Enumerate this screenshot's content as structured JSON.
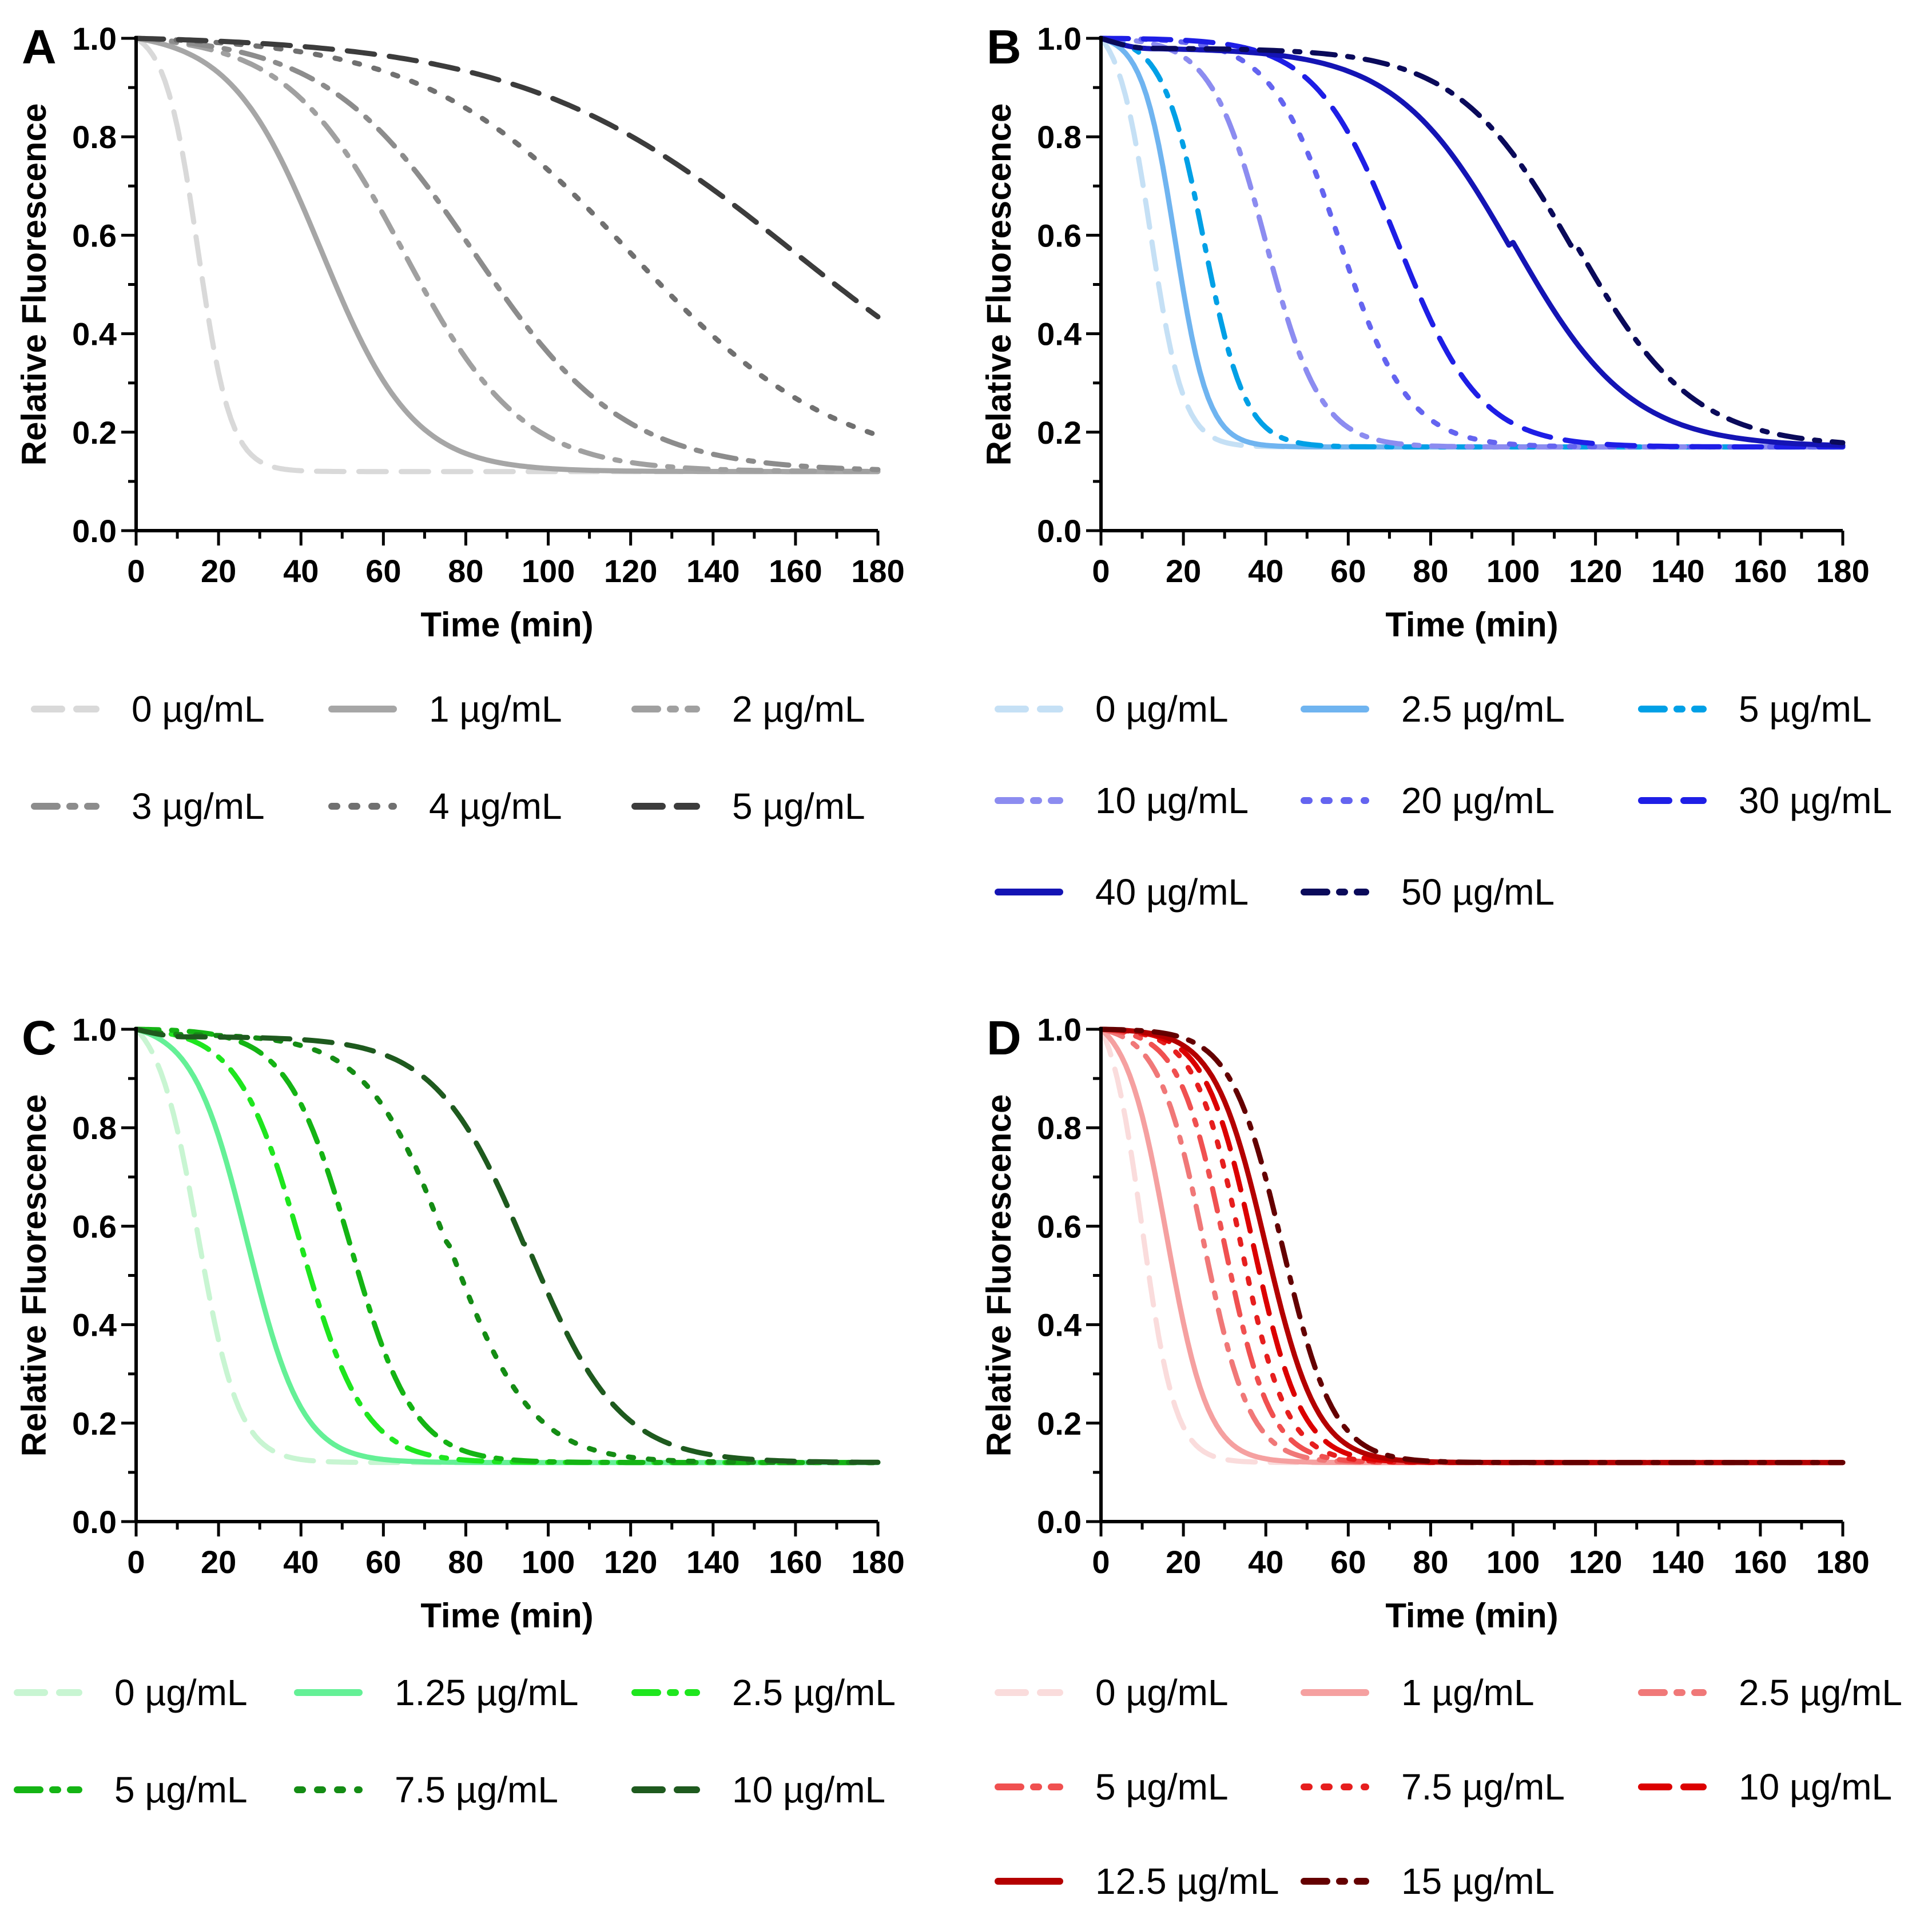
{
  "chart_data": [
    {
      "type": "line",
      "panel": "A",
      "ylabel": "Relative Fluorescence",
      "xlabel": "Time (min)",
      "xlim": [
        0,
        180
      ],
      "ylim": [
        0,
        1
      ],
      "xticks": [
        "0",
        "20",
        "40",
        "60",
        "80",
        "100",
        "120",
        "140",
        "160",
        "180"
      ],
      "yticks": [
        "0.0",
        "0.2",
        "0.4",
        "0.6",
        "0.8",
        "1.0"
      ],
      "legend_columns": 3,
      "series": [
        {
          "name": "0 µg/mL",
          "color": "#d9d9d9",
          "style": "dash",
          "t50": 15,
          "k": 0.25,
          "plateau": 0.12,
          "lag": 0
        },
        {
          "name": "1 µg/mL",
          "color": "#a6a6a6",
          "style": "solid",
          "t50": 45,
          "k": 0.09,
          "plateau": 0.12,
          "lag": 0
        },
        {
          "name": "2 µg/mL",
          "color": "#a0a0a0",
          "style": "dashdot",
          "t50": 65,
          "k": 0.07,
          "plateau": 0.12,
          "lag": 0
        },
        {
          "name": "3 µg/mL",
          "color": "#8c8c8c",
          "style": "dashdot",
          "t50": 82,
          "k": 0.055,
          "plateau": 0.12,
          "lag": 0
        },
        {
          "name": "4 µg/mL",
          "color": "#707070",
          "style": "dot",
          "t50": 120,
          "k": 0.04,
          "plateau": 0.12,
          "lag": 0
        },
        {
          "name": "5 µg/mL",
          "color": "#3c3c3c",
          "style": "dash",
          "t50": 160,
          "k": 0.03,
          "plateau": 0.12,
          "lag": 0
        }
      ]
    },
    {
      "type": "line",
      "panel": "B",
      "ylabel": "Relative Fluorescence",
      "xlabel": "Time (min)",
      "xlim": [
        0,
        180
      ],
      "ylim": [
        0,
        1
      ],
      "xticks": [
        "0",
        "20",
        "40",
        "60",
        "80",
        "100",
        "120",
        "140",
        "160",
        "180"
      ],
      "yticks": [
        "0.0",
        "0.2",
        "0.4",
        "0.6",
        "0.8",
        "1.0"
      ],
      "legend_columns": 3,
      "series": [
        {
          "name": "0 µg/mL",
          "color": "#c5e0f5",
          "style": "dash",
          "t50": 12,
          "k": 0.25,
          "plateau": 0.17,
          "lag": 0
        },
        {
          "name": "2.5 µg/mL",
          "color": "#6fb4f0",
          "style": "solid",
          "t50": 18,
          "k": 0.25,
          "plateau": 0.17,
          "lag": 0
        },
        {
          "name": "5 µg/mL",
          "color": "#00a0e6",
          "style": "dashdot",
          "t50": 25,
          "k": 0.2,
          "plateau": 0.17,
          "lag": 0
        },
        {
          "name": "10 µg/mL",
          "color": "#8c8cf0",
          "style": "dashdot",
          "t50": 40,
          "k": 0.15,
          "plateau": 0.17,
          "lag": 0
        },
        {
          "name": "20 µg/mL",
          "color": "#6464f0",
          "style": "dot",
          "t50": 58,
          "k": 0.12,
          "plateau": 0.17,
          "lag": 0
        },
        {
          "name": "30 µg/mL",
          "color": "#1e1ee6",
          "style": "dash",
          "t50": 72,
          "k": 0.1,
          "plateau": 0.17,
          "lag": 0
        },
        {
          "name": "40 µg/mL",
          "color": "#1414b4",
          "style": "solid",
          "t50": 100,
          "k": 0.07,
          "plateau": 0.17,
          "lag": 0.02
        },
        {
          "name": "50 µg/mL",
          "color": "#0a0a5a",
          "style": "dashdot",
          "t50": 115,
          "k": 0.07,
          "plateau": 0.17,
          "lag": 0.02
        }
      ]
    },
    {
      "type": "line",
      "panel": "C",
      "ylabel": "Relative Fluorescence",
      "xlabel": "Time (min)",
      "xlim": [
        0,
        180
      ],
      "ylim": [
        0,
        1
      ],
      "xticks": [
        "0",
        "20",
        "40",
        "60",
        "80",
        "100",
        "120",
        "140",
        "160",
        "180"
      ],
      "yticks": [
        "0.0",
        "0.2",
        "0.4",
        "0.6",
        "0.8",
        "1.0"
      ],
      "legend_columns": 3,
      "series": [
        {
          "name": "0 µg/mL",
          "color": "#c8f5d2",
          "style": "dash",
          "t50": 15,
          "k": 0.2,
          "plateau": 0.12,
          "lag": 0
        },
        {
          "name": "1.25 µg/mL",
          "color": "#64f096",
          "style": "solid",
          "t50": 27,
          "k": 0.15,
          "plateau": 0.12,
          "lag": 0
        },
        {
          "name": "2.5 µg/mL",
          "color": "#1ee61e",
          "style": "dashdot",
          "t50": 40,
          "k": 0.13,
          "plateau": 0.12,
          "lag": 0
        },
        {
          "name": "5 µg/mL",
          "color": "#14b414",
          "style": "dashdot",
          "t50": 52,
          "k": 0.13,
          "plateau": 0.12,
          "lag": 0
        },
        {
          "name": "7.5 µg/mL",
          "color": "#148c14",
          "style": "dot",
          "t50": 76,
          "k": 0.1,
          "plateau": 0.12,
          "lag": 0.01
        },
        {
          "name": "10 µg/mL",
          "color": "#1e5a1e",
          "style": "dash",
          "t50": 95,
          "k": 0.09,
          "plateau": 0.12,
          "lag": 0.015
        }
      ]
    },
    {
      "type": "line",
      "panel": "D",
      "ylabel": "Relative Fluorescence",
      "xlabel": "Time (min)",
      "xlim": [
        0,
        180
      ],
      "ylim": [
        0,
        1
      ],
      "xticks": [
        "0",
        "20",
        "40",
        "60",
        "80",
        "100",
        "120",
        "140",
        "160",
        "180"
      ],
      "yticks": [
        "0.0",
        "0.2",
        "0.4",
        "0.6",
        "0.8",
        "1.0"
      ],
      "legend_columns": 3,
      "series": [
        {
          "name": "0 µg/mL",
          "color": "#fadcdc",
          "style": "dash",
          "t50": 10,
          "k": 0.25,
          "plateau": 0.12,
          "lag": 0
        },
        {
          "name": "1 µg/mL",
          "color": "#f5a0a0",
          "style": "solid",
          "t50": 16,
          "k": 0.2,
          "plateau": 0.12,
          "lag": 0
        },
        {
          "name": "2.5 µg/mL",
          "color": "#f07878",
          "style": "dashdot",
          "t50": 25,
          "k": 0.18,
          "plateau": 0.12,
          "lag": 0
        },
        {
          "name": "5 µg/mL",
          "color": "#f05050",
          "style": "dashdot",
          "t50": 30,
          "k": 0.18,
          "plateau": 0.12,
          "lag": 0
        },
        {
          "name": "7.5 µg/mL",
          "color": "#e61e1e",
          "style": "dot",
          "t50": 34,
          "k": 0.18,
          "plateau": 0.12,
          "lag": 0
        },
        {
          "name": "10 µg/mL",
          "color": "#dc0000",
          "style": "dash",
          "t50": 37,
          "k": 0.17,
          "plateau": 0.12,
          "lag": 0
        },
        {
          "name": "12.5 µg/mL",
          "color": "#b40000",
          "style": "solid",
          "t50": 40,
          "k": 0.16,
          "plateau": 0.12,
          "lag": 0
        },
        {
          "name": "15 µg/mL",
          "color": "#640000",
          "style": "dashdot",
          "t50": 44,
          "k": 0.16,
          "plateau": 0.12,
          "lag": 0
        }
      ]
    }
  ]
}
